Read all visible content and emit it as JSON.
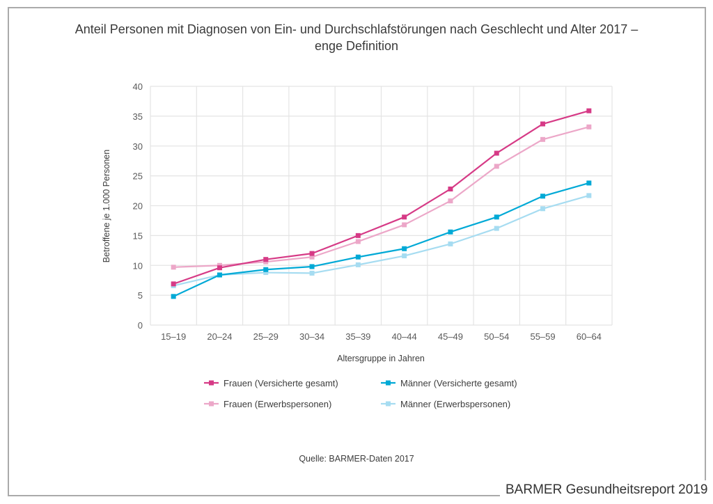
{
  "chart_data": {
    "type": "line",
    "title_line1": "Anteil Personen mit Diagnosen von Ein- und Durchschlafstörungen nach Geschlecht und Alter 2017 –",
    "title_line2": "enge Definition",
    "xlabel": "Altersgruppe in Jahren",
    "ylabel": "Betroffene je 1.000 Personen",
    "ylim": [
      0,
      40
    ],
    "yticks": [
      0,
      5,
      10,
      15,
      20,
      25,
      30,
      35,
      40
    ],
    "grid": true,
    "legend_position": "bottom",
    "categories": [
      "15–19",
      "20–24",
      "25–29",
      "30–34",
      "35–39",
      "40–44",
      "45–49",
      "50–54",
      "55–59",
      "60–64"
    ],
    "series": [
      {
        "name": "Frauen (Versicherte gesamt)",
        "color": "#d63a86",
        "values": [
          6.9,
          9.6,
          11.0,
          12.0,
          15.0,
          18.1,
          22.8,
          28.8,
          33.7,
          35.9
        ]
      },
      {
        "name": "Frauen (Erwerbspersonen)",
        "color": "#eca7c8",
        "values": [
          9.7,
          10.0,
          10.6,
          11.4,
          14.0,
          16.8,
          20.8,
          26.6,
          31.1,
          33.2
        ]
      },
      {
        "name": "Männer (Versicherte gesamt)",
        "color": "#00a9d6",
        "values": [
          4.8,
          8.4,
          9.3,
          9.8,
          11.4,
          12.8,
          15.6,
          18.1,
          21.6,
          23.8
        ]
      },
      {
        "name": "Männer (Erwerbspersonen)",
        "color": "#a6dcf1",
        "values": [
          6.6,
          8.4,
          8.8,
          8.7,
          10.1,
          11.6,
          13.6,
          16.2,
          19.5,
          21.7
        ]
      }
    ],
    "source": "Quelle: BARMER-Daten 2017"
  },
  "footer": {
    "brand": "BARMER Gesundheitsreport 2019"
  }
}
